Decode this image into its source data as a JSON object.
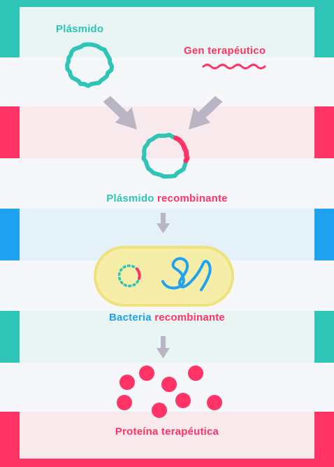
{
  "labels": {
    "plasmid": "Plásmido",
    "gene": "Gen terapéutico",
    "recombinant_plasmid_part1": "Plásmido",
    "recombinant_plasmid_part2": "recombinante",
    "recombinant_bacteria_part1": "Bacteria",
    "recombinant_bacteria_part2": "recombinante",
    "protein": "Proteína terapéutica"
  },
  "colors": {
    "teal": "#2ec4b6",
    "pink": "#ff3366",
    "blue": "#1fa2f0",
    "gray_arrow": "#b9b5c4",
    "bacteria_fill": "#f6eea8",
    "bacteria_stroke": "#efe27e"
  }
}
